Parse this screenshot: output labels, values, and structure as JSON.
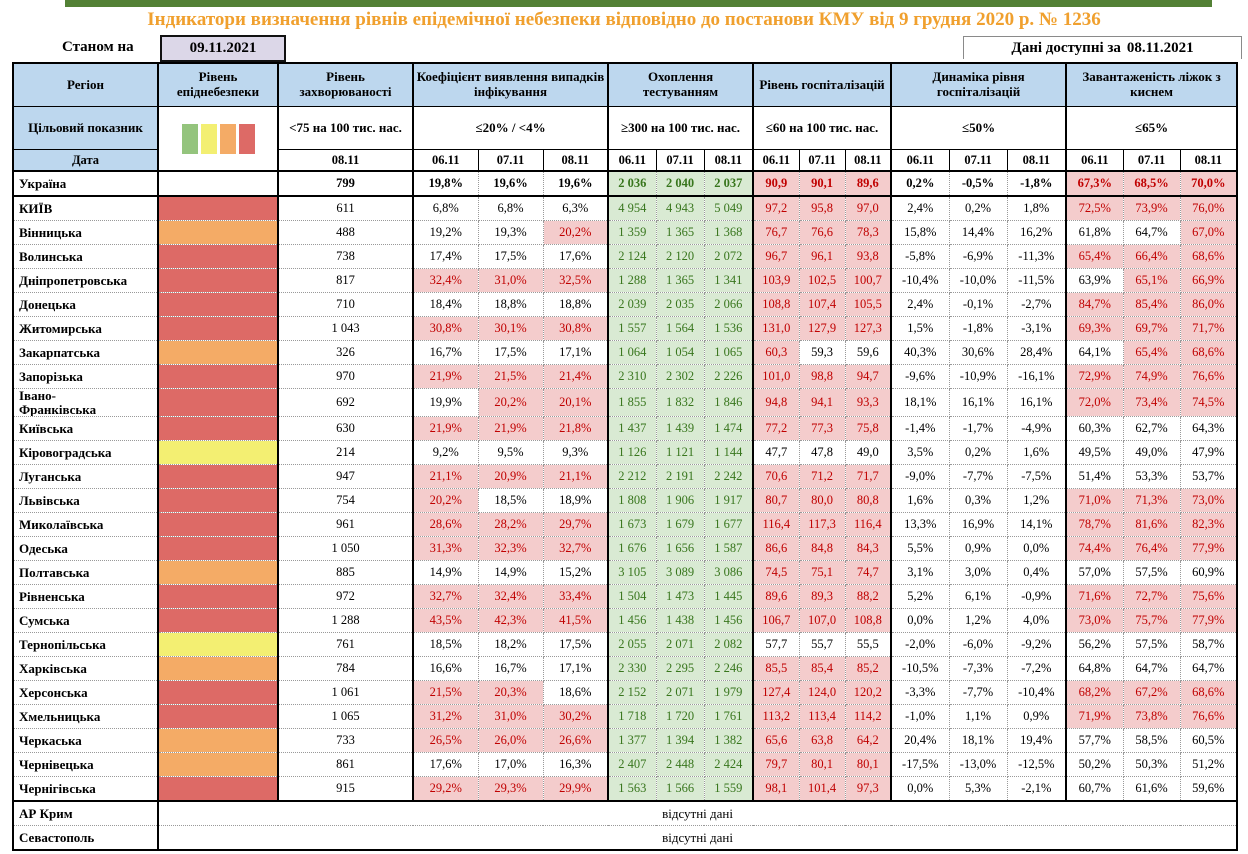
{
  "page": {
    "title": "Індикатори визначення рівнів епідемічної небезпеки відповідно до постанови КМУ від 9 грудня 2020 р. № 1236",
    "as_of_label": "Станом на",
    "as_of_date": "09.11.2021",
    "available_label": "Дані доступні за",
    "available_date": "08.11.2021"
  },
  "colors": {
    "top_bar_green": "#538135",
    "title_orange": "#f0a02e",
    "header_blue": "#bdd7ee",
    "date_box_lavender": "#dcd7e8",
    "highlight_pink_bg": "#f4cccc",
    "highlight_red_text": "#c00000",
    "testing_green_bg": "#d9ead3",
    "testing_green_text": "#38761d",
    "risk": {
      "red": "#dd6a66",
      "orange": "#f4ab66",
      "yellow": "#f3ef72",
      "": "#ffffff"
    }
  },
  "chart_data": {
    "type": "table",
    "row_labels": {
      "target": "Цільовий показник",
      "date": "Дата"
    },
    "groups": [
      {
        "label": "Регіон"
      },
      {
        "label": "Рівень епіднебезпеки"
      },
      {
        "label": "Рівень захворюваності",
        "target": "<75 на 100 тис. нас.",
        "dates": [
          "08.11"
        ]
      },
      {
        "label": "Коефіцієнт виявлення випадків інфікування",
        "target": "≤20% / <4%",
        "dates": [
          "06.11",
          "07.11",
          "08.11"
        ]
      },
      {
        "label": "Охоплення тестуванням",
        "target": "≥300 на 100 тис. нас.",
        "dates": [
          "06.11",
          "07.11",
          "08.11"
        ]
      },
      {
        "label": "Рівень госпіталізацій",
        "target": "≤60 на 100 тис. нас.",
        "dates": [
          "06.11",
          "07.11",
          "08.11"
        ]
      },
      {
        "label": "Динаміка рівня госпіталізацій",
        "target": "≤50%",
        "dates": [
          "06.11",
          "07.11",
          "08.11"
        ]
      },
      {
        "label": "Завантаженість ліжок з киснем",
        "target": "≤65%",
        "dates": [
          "06.11",
          "07.11",
          "08.11"
        ]
      }
    ],
    "legend_colors": [
      "#94c47d",
      "#f3ef72",
      "#f4ab66",
      "#dd6a66"
    ],
    "thresholds": {
      "detection": 20,
      "hospitalization": 60,
      "beds": 65
    },
    "rows": [
      {
        "region": "Україна",
        "is_summary": true,
        "risk": "",
        "incidence": "799",
        "detection": [
          "19,8%",
          "19,6%",
          "19,6%"
        ],
        "testing": [
          "2 036",
          "2 040",
          "2 037"
        ],
        "hospital": [
          "90,9",
          "90,1",
          "89,6"
        ],
        "dynamics": [
          "0,2%",
          "-0,5%",
          "-1,8%"
        ],
        "beds": [
          "67,3%",
          "68,5%",
          "70,0%"
        ]
      },
      {
        "region": "КИЇВ",
        "risk": "red",
        "incidence": "611",
        "detection": [
          "6,8%",
          "6,8%",
          "6,3%"
        ],
        "testing": [
          "4 954",
          "4 943",
          "5 049"
        ],
        "hospital": [
          "97,2",
          "95,8",
          "97,0"
        ],
        "dynamics": [
          "2,4%",
          "0,2%",
          "1,8%"
        ],
        "beds": [
          "72,5%",
          "73,9%",
          "76,0%"
        ]
      },
      {
        "region": "Вінницька",
        "risk": "orange",
        "incidence": "488",
        "detection": [
          "19,2%",
          "19,3%",
          "20,2%"
        ],
        "testing": [
          "1 359",
          "1 365",
          "1 368"
        ],
        "hospital": [
          "76,7",
          "76,6",
          "78,3"
        ],
        "dynamics": [
          "15,8%",
          "14,4%",
          "16,2%"
        ],
        "beds": [
          "61,8%",
          "64,7%",
          "67,0%"
        ]
      },
      {
        "region": "Волинська",
        "risk": "red",
        "incidence": "738",
        "detection": [
          "17,4%",
          "17,5%",
          "17,6%"
        ],
        "testing": [
          "2 124",
          "2 120",
          "2 072"
        ],
        "hospital": [
          "96,7",
          "96,1",
          "93,8"
        ],
        "dynamics": [
          "-5,8%",
          "-6,9%",
          "-11,3%"
        ],
        "beds": [
          "65,4%",
          "66,4%",
          "68,6%"
        ]
      },
      {
        "region": "Дніпропетровська",
        "risk": "red",
        "incidence": "817",
        "detection": [
          "32,4%",
          "31,0%",
          "32,5%"
        ],
        "testing": [
          "1 288",
          "1 365",
          "1 341"
        ],
        "hospital": [
          "103,9",
          "102,5",
          "100,7"
        ],
        "dynamics": [
          "-10,4%",
          "-10,0%",
          "-11,5%"
        ],
        "beds": [
          "63,9%",
          "65,1%",
          "66,9%"
        ]
      },
      {
        "region": "Донецька",
        "risk": "red",
        "incidence": "710",
        "detection": [
          "18,4%",
          "18,8%",
          "18,8%"
        ],
        "testing": [
          "2 039",
          "2 035",
          "2 066"
        ],
        "hospital": [
          "108,8",
          "107,4",
          "105,5"
        ],
        "dynamics": [
          "2,4%",
          "-0,1%",
          "-2,7%"
        ],
        "beds": [
          "84,7%",
          "85,4%",
          "86,0%"
        ]
      },
      {
        "region": "Житомирська",
        "risk": "red",
        "incidence": "1 043",
        "detection": [
          "30,8%",
          "30,1%",
          "30,8%"
        ],
        "testing": [
          "1 557",
          "1 564",
          "1 536"
        ],
        "hospital": [
          "131,0",
          "127,9",
          "127,3"
        ],
        "dynamics": [
          "1,5%",
          "-1,8%",
          "-3,1%"
        ],
        "beds": [
          "69,3%",
          "69,7%",
          "71,7%"
        ]
      },
      {
        "region": "Закарпатська",
        "risk": "orange",
        "incidence": "326",
        "detection": [
          "16,7%",
          "17,5%",
          "17,1%"
        ],
        "testing": [
          "1 064",
          "1 054",
          "1 065"
        ],
        "hospital": [
          "60,3",
          "59,3",
          "59,6"
        ],
        "dynamics": [
          "40,3%",
          "30,6%",
          "28,4%"
        ],
        "beds": [
          "64,1%",
          "65,4%",
          "68,6%"
        ]
      },
      {
        "region": "Запорізька",
        "risk": "red",
        "incidence": "970",
        "detection": [
          "21,9%",
          "21,5%",
          "21,4%"
        ],
        "testing": [
          "2 310",
          "2 302",
          "2 226"
        ],
        "hospital": [
          "101,0",
          "98,8",
          "94,7"
        ],
        "dynamics": [
          "-9,6%",
          "-10,9%",
          "-16,1%"
        ],
        "beds": [
          "72,9%",
          "74,9%",
          "76,6%"
        ]
      },
      {
        "region": "Івано-\nФранківська",
        "risk": "red",
        "incidence": "692",
        "detection": [
          "19,9%",
          "20,2%",
          "20,1%"
        ],
        "testing": [
          "1 855",
          "1 832",
          "1 846"
        ],
        "hospital": [
          "94,8",
          "94,1",
          "93,3"
        ],
        "dynamics": [
          "18,1%",
          "16,1%",
          "16,1%"
        ],
        "beds": [
          "72,0%",
          "73,4%",
          "74,5%"
        ]
      },
      {
        "region": "Київська",
        "risk": "red",
        "incidence": "630",
        "detection": [
          "21,9%",
          "21,9%",
          "21,8%"
        ],
        "testing": [
          "1 437",
          "1 439",
          "1 474"
        ],
        "hospital": [
          "77,2",
          "77,3",
          "75,8"
        ],
        "dynamics": [
          "-1,4%",
          "-1,7%",
          "-4,9%"
        ],
        "beds": [
          "60,3%",
          "62,7%",
          "64,3%"
        ]
      },
      {
        "region": "Кіровоградська",
        "risk": "yellow",
        "incidence": "214",
        "detection": [
          "9,2%",
          "9,5%",
          "9,3%"
        ],
        "testing": [
          "1 126",
          "1 121",
          "1 144"
        ],
        "hospital": [
          "47,7",
          "47,8",
          "49,0"
        ],
        "dynamics": [
          "3,5%",
          "0,2%",
          "1,6%"
        ],
        "beds": [
          "49,5%",
          "49,0%",
          "47,9%"
        ]
      },
      {
        "region": "Луганська",
        "risk": "red",
        "incidence": "947",
        "detection": [
          "21,1%",
          "20,9%",
          "21,1%"
        ],
        "testing": [
          "2 212",
          "2 191",
          "2 242"
        ],
        "hospital": [
          "70,6",
          "71,2",
          "71,7"
        ],
        "dynamics": [
          "-9,0%",
          "-7,7%",
          "-7,5%"
        ],
        "beds": [
          "51,4%",
          "53,3%",
          "53,7%"
        ]
      },
      {
        "region": "Львівська",
        "risk": "red",
        "incidence": "754",
        "detection": [
          "20,2%",
          "18,5%",
          "18,9%"
        ],
        "testing": [
          "1 808",
          "1 906",
          "1 917"
        ],
        "hospital": [
          "80,7",
          "80,0",
          "80,8"
        ],
        "dynamics": [
          "1,6%",
          "0,3%",
          "1,2%"
        ],
        "beds": [
          "71,0%",
          "71,3%",
          "73,0%"
        ]
      },
      {
        "region": "Миколаївська",
        "risk": "red",
        "incidence": "961",
        "detection": [
          "28,6%",
          "28,2%",
          "29,7%"
        ],
        "testing": [
          "1 673",
          "1 679",
          "1 677"
        ],
        "hospital": [
          "116,4",
          "117,3",
          "116,4"
        ],
        "dynamics": [
          "13,3%",
          "16,9%",
          "14,1%"
        ],
        "beds": [
          "78,7%",
          "81,6%",
          "82,3%"
        ]
      },
      {
        "region": "Одеська",
        "risk": "red",
        "incidence": "1 050",
        "detection": [
          "31,3%",
          "32,3%",
          "32,7%"
        ],
        "testing": [
          "1 676",
          "1 656",
          "1 587"
        ],
        "hospital": [
          "86,6",
          "84,8",
          "84,3"
        ],
        "dynamics": [
          "5,5%",
          "0,9%",
          "0,0%"
        ],
        "beds": [
          "74,4%",
          "76,4%",
          "77,9%"
        ]
      },
      {
        "region": "Полтавська",
        "risk": "orange",
        "incidence": "885",
        "detection": [
          "14,9%",
          "14,9%",
          "15,2%"
        ],
        "testing": [
          "3 105",
          "3 089",
          "3 086"
        ],
        "hospital": [
          "74,5",
          "75,1",
          "74,7"
        ],
        "dynamics": [
          "3,1%",
          "3,0%",
          "0,4%"
        ],
        "beds": [
          "57,0%",
          "57,5%",
          "60,9%"
        ]
      },
      {
        "region": "Рівненська",
        "risk": "red",
        "incidence": "972",
        "detection": [
          "32,7%",
          "32,4%",
          "33,4%"
        ],
        "testing": [
          "1 504",
          "1 473",
          "1 445"
        ],
        "hospital": [
          "89,6",
          "89,3",
          "88,2"
        ],
        "dynamics": [
          "5,2%",
          "6,1%",
          "-0,9%"
        ],
        "beds": [
          "71,6%",
          "72,7%",
          "75,6%"
        ]
      },
      {
        "region": "Сумська",
        "risk": "red",
        "incidence": "1 288",
        "detection": [
          "43,5%",
          "42,3%",
          "41,5%"
        ],
        "testing": [
          "1 456",
          "1 438",
          "1 456"
        ],
        "hospital": [
          "106,7",
          "107,0",
          "108,8"
        ],
        "dynamics": [
          "0,0%",
          "1,2%",
          "4,0%"
        ],
        "beds": [
          "73,0%",
          "75,7%",
          "77,9%"
        ]
      },
      {
        "region": "Тернопільська",
        "risk": "yellow",
        "incidence": "761",
        "detection": [
          "18,5%",
          "18,2%",
          "17,5%"
        ],
        "testing": [
          "2 055",
          "2 071",
          "2 082"
        ],
        "hospital": [
          "57,7",
          "55,7",
          "55,5"
        ],
        "dynamics": [
          "-2,0%",
          "-6,0%",
          "-9,2%"
        ],
        "beds": [
          "56,2%",
          "57,5%",
          "58,7%"
        ]
      },
      {
        "region": "Харківська",
        "risk": "orange",
        "incidence": "784",
        "detection": [
          "16,6%",
          "16,7%",
          "17,1%"
        ],
        "testing": [
          "2 330",
          "2 295",
          "2 246"
        ],
        "hospital": [
          "85,5",
          "85,4",
          "85,2"
        ],
        "dynamics": [
          "-10,5%",
          "-7,3%",
          "-7,2%"
        ],
        "beds": [
          "64,8%",
          "64,7%",
          "64,7%"
        ]
      },
      {
        "region": "Херсонська",
        "risk": "red",
        "incidence": "1 061",
        "detection": [
          "21,5%",
          "20,3%",
          "18,6%"
        ],
        "testing": [
          "2 152",
          "2 071",
          "1 979"
        ],
        "hospital": [
          "127,4",
          "124,0",
          "120,2"
        ],
        "dynamics": [
          "-3,3%",
          "-7,7%",
          "-10,4%"
        ],
        "beds": [
          "68,2%",
          "67,2%",
          "68,6%"
        ]
      },
      {
        "region": "Хмельницька",
        "risk": "red",
        "incidence": "1 065",
        "detection": [
          "31,2%",
          "31,0%",
          "30,2%"
        ],
        "testing": [
          "1 718",
          "1 720",
          "1 761"
        ],
        "hospital": [
          "113,2",
          "113,4",
          "114,2"
        ],
        "dynamics": [
          "-1,0%",
          "1,1%",
          "0,9%"
        ],
        "beds": [
          "71,9%",
          "73,8%",
          "76,6%"
        ]
      },
      {
        "region": "Черкаська",
        "risk": "orange",
        "incidence": "733",
        "detection": [
          "26,5%",
          "26,0%",
          "26,6%"
        ],
        "testing": [
          "1 377",
          "1 394",
          "1 382"
        ],
        "hospital": [
          "65,6",
          "63,8",
          "64,2"
        ],
        "dynamics": [
          "20,4%",
          "18,1%",
          "19,4%"
        ],
        "beds": [
          "57,7%",
          "58,5%",
          "60,5%"
        ]
      },
      {
        "region": "Чернівецька",
        "risk": "orange",
        "incidence": "861",
        "detection": [
          "17,6%",
          "17,0%",
          "16,3%"
        ],
        "testing": [
          "2 407",
          "2 448",
          "2 424"
        ],
        "hospital": [
          "79,7",
          "80,1",
          "80,1"
        ],
        "dynamics": [
          "-17,5%",
          "-13,0%",
          "-12,5%"
        ],
        "beds": [
          "50,2%",
          "50,3%",
          "51,2%"
        ]
      },
      {
        "region": "Чернігівська",
        "risk": "red",
        "incidence": "915",
        "detection": [
          "29,2%",
          "29,3%",
          "29,9%"
        ],
        "testing": [
          "1 563",
          "1 566",
          "1 559"
        ],
        "hospital": [
          "98,1",
          "101,4",
          "97,3"
        ],
        "dynamics": [
          "0,0%",
          "5,3%",
          "-2,1%"
        ],
        "beds": [
          "60,7%",
          "61,6%",
          "59,6%"
        ]
      }
    ],
    "no_data_rows": [
      {
        "region": "АР Крим",
        "text": "відсутні дані"
      },
      {
        "region": "Севастополь",
        "text": "відсутні дані"
      }
    ]
  }
}
